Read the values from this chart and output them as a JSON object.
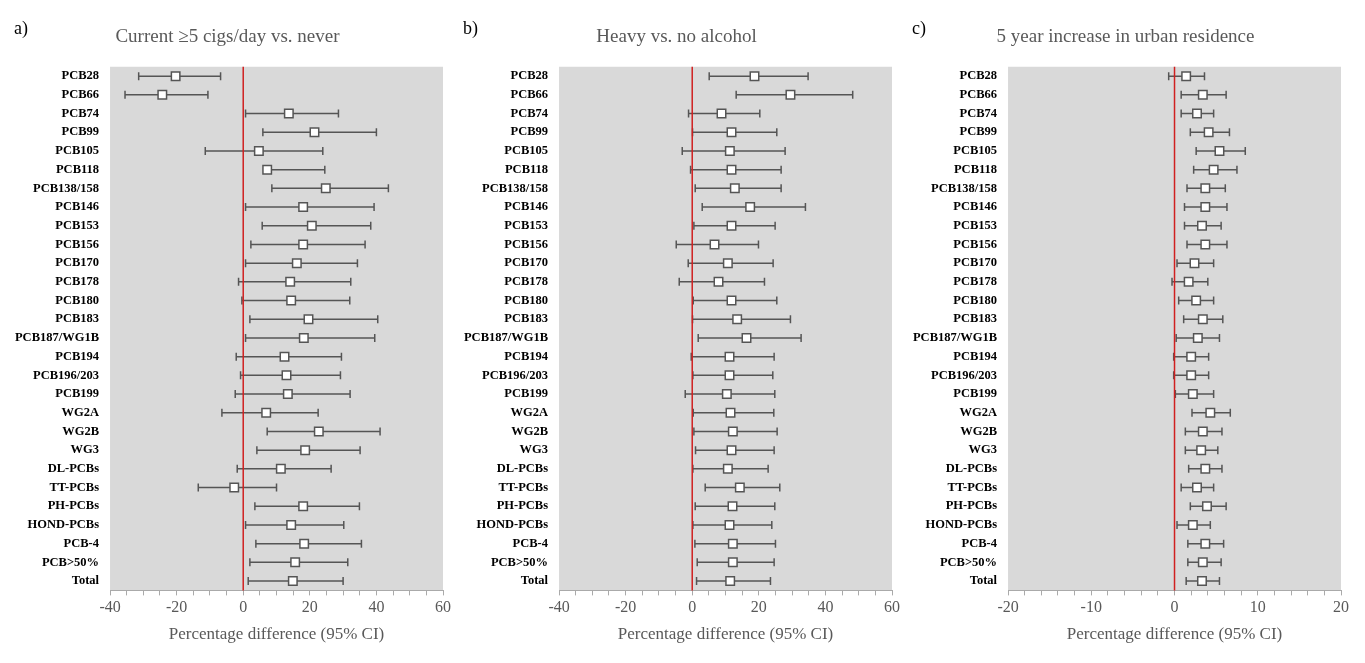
{
  "chart_data": [
    {
      "type": "scatter",
      "orientation": "horizontal",
      "title": "Current ≥5 cigs/day vs. never",
      "xlabel": "Percentage difference (95% CI)",
      "annotations": [
        "a)"
      ],
      "categories": [
        "PCB28",
        "PCB66",
        "PCB74",
        "PCB99",
        "PCB105",
        "PCB118",
        "PCB138/158",
        "PCB146",
        "PCB153",
        "PCB156",
        "PCB170",
        "PCB178",
        "PCB180",
        "PCB183",
        "PCB187/WG1B",
        "PCB194",
        "PCB196/203",
        "PCB199",
        "WG2A",
        "WG2B",
        "WG3",
        "DL-PCBs",
        "TT-PCBs",
        "PH-PCBs",
        "HOND-PCBs",
        "PCB-4",
        "PCB>50%",
        "Total"
      ],
      "values": [
        -20.3,
        -24.3,
        13.7,
        21.4,
        4.7,
        7.2,
        24.8,
        18.0,
        20.6,
        18.0,
        16.1,
        14.1,
        14.4,
        19.6,
        18.2,
        12.4,
        13.0,
        13.4,
        6.9,
        22.7,
        18.6,
        11.3,
        -2.7,
        18.0,
        14.4,
        18.3,
        15.6,
        14.9
      ],
      "errors": [
        [
          -31.4,
          -6.8
        ],
        [
          -35.5,
          -10.6
        ],
        [
          0.7,
          28.6
        ],
        [
          5.9,
          40.0
        ],
        [
          -11.4,
          23.9
        ],
        [
          6.4,
          24.5
        ],
        [
          8.6,
          43.6
        ],
        [
          0.7,
          39.3
        ],
        [
          5.7,
          38.3
        ],
        [
          2.3,
          36.6
        ],
        [
          0.7,
          34.3
        ],
        [
          -1.4,
          32.3
        ],
        [
          -0.4,
          32.0
        ],
        [
          2.0,
          40.4
        ],
        [
          0.7,
          39.5
        ],
        [
          -2.1,
          29.5
        ],
        [
          -0.8,
          29.2
        ],
        [
          -2.4,
          32.1
        ],
        [
          -6.4,
          22.5
        ],
        [
          7.2,
          41.1
        ],
        [
          4.1,
          35.1
        ],
        [
          -1.8,
          26.4
        ],
        [
          -13.5,
          10.0
        ],
        [
          3.5,
          34.9
        ],
        [
          0.7,
          30.2
        ],
        [
          3.8,
          35.5
        ],
        [
          2.0,
          31.4
        ],
        [
          1.5,
          30.0
        ]
      ],
      "color": "#555555",
      "marker": "square",
      "xlim": [
        -40,
        60
      ],
      "xticks": [
        -40,
        {
          "value": -35,
          "label": null
        },
        {
          "value": -30,
          "label": null
        },
        {
          "value": -25,
          "label": null
        },
        -20,
        {
          "value": -15,
          "label": null
        },
        {
          "value": -10,
          "label": null
        },
        {
          "value": -5,
          "label": null
        },
        0,
        {
          "value": 5,
          "label": null
        },
        {
          "value": 10,
          "label": null
        },
        {
          "value": 15,
          "label": null
        },
        20,
        {
          "value": 25,
          "label": null
        },
        {
          "value": 30,
          "label": null
        },
        {
          "value": 35,
          "label": null
        },
        40,
        {
          "value": 45,
          "label": null
        },
        {
          "value": 50,
          "label": null
        },
        {
          "value": 55,
          "label": null
        },
        60
      ],
      "ref_lines": [
        {
          "axis": "x",
          "value": 0,
          "color": "#d02020"
        }
      ],
      "grid": false,
      "legend": false
    },
    {
      "type": "scatter",
      "orientation": "horizontal",
      "title": "Heavy vs. no alcohol",
      "xlabel": "Percentage difference (95% CI)",
      "annotations": [
        "b)"
      ],
      "categories": [
        "PCB28",
        "PCB66",
        "PCB74",
        "PCB99",
        "PCB105",
        "PCB118",
        "PCB138/158",
        "PCB146",
        "PCB153",
        "PCB156",
        "PCB170",
        "PCB178",
        "PCB180",
        "PCB183",
        "PCB187/WG1B",
        "PCB194",
        "PCB196/203",
        "PCB199",
        "WG2A",
        "WG2B",
        "WG3",
        "DL-PCBs",
        "TT-PCBs",
        "PH-PCBs",
        "HOND-PCBs",
        "PCB-4",
        "PCB>50%",
        "Total"
      ],
      "values": [
        18.7,
        29.5,
        8.8,
        11.8,
        11.3,
        11.8,
        12.8,
        17.4,
        11.8,
        6.7,
        10.7,
        7.9,
        11.8,
        13.5,
        16.3,
        11.2,
        11.2,
        10.4,
        11.5,
        12.2,
        11.8,
        10.7,
        14.3,
        12.1,
        11.2,
        12.2,
        12.2,
        11.4
      ],
      "errors": [
        [
          5.1,
          34.8
        ],
        [
          13.2,
          48.2
        ],
        [
          -1.1,
          20.3
        ],
        [
          0.1,
          25.4
        ],
        [
          -3.0,
          27.9
        ],
        [
          -0.5,
          26.7
        ],
        [
          0.9,
          26.7
        ],
        [
          3.0,
          34.0
        ],
        [
          0.5,
          24.9
        ],
        [
          -4.8,
          19.9
        ],
        [
          -1.2,
          24.3
        ],
        [
          -3.9,
          21.7
        ],
        [
          0.3,
          25.4
        ],
        [
          0.1,
          29.5
        ],
        [
          1.8,
          32.7
        ],
        [
          -0.3,
          24.6
        ],
        [
          0.2,
          24.2
        ],
        [
          -2.1,
          24.8
        ],
        [
          0.3,
          24.5
        ],
        [
          0.5,
          25.5
        ],
        [
          1.0,
          24.6
        ],
        [
          0.2,
          22.8
        ],
        [
          3.9,
          26.3
        ],
        [
          0.9,
          24.8
        ],
        [
          0.2,
          23.9
        ],
        [
          0.8,
          25.0
        ],
        [
          1.5,
          24.6
        ],
        [
          1.3,
          23.5
        ]
      ],
      "color": "#555555",
      "marker": "square",
      "xlim": [
        -40,
        60
      ],
      "xticks": [
        -40,
        {
          "value": -35,
          "label": null
        },
        {
          "value": -30,
          "label": null
        },
        {
          "value": -25,
          "label": null
        },
        -20,
        {
          "value": -15,
          "label": null
        },
        {
          "value": -10,
          "label": null
        },
        {
          "value": -5,
          "label": null
        },
        0,
        {
          "value": 5,
          "label": null
        },
        {
          "value": 10,
          "label": null
        },
        {
          "value": 15,
          "label": null
        },
        20,
        {
          "value": 25,
          "label": null
        },
        {
          "value": 30,
          "label": null
        },
        {
          "value": 35,
          "label": null
        },
        40,
        {
          "value": 45,
          "label": null
        },
        {
          "value": 50,
          "label": null
        },
        {
          "value": 55,
          "label": null
        },
        60
      ],
      "ref_lines": [
        {
          "axis": "x",
          "value": 0,
          "color": "#d02020"
        }
      ],
      "grid": false,
      "legend": false
    },
    {
      "type": "scatter",
      "orientation": "horizontal",
      "title": "5 year increase in urban residence",
      "xlabel": "Percentage difference (95% CI)",
      "annotations": [
        "c)"
      ],
      "categories": [
        "PCB28",
        "PCB66",
        "PCB74",
        "PCB99",
        "PCB105",
        "PCB118",
        "PCB138/158",
        "PCB146",
        "PCB153",
        "PCB156",
        "PCB170",
        "PCB178",
        "PCB180",
        "PCB183",
        "PCB187/WG1B",
        "PCB194",
        "PCB196/203",
        "PCB199",
        "WG2A",
        "WG2B",
        "WG3",
        "DL-PCBs",
        "TT-PCBs",
        "PH-PCBs",
        "HOND-PCBs",
        "PCB-4",
        "PCB>50%",
        "Total"
      ],
      "values": [
        1.4,
        3.4,
        2.7,
        4.1,
        5.4,
        4.7,
        3.7,
        3.7,
        3.3,
        3.7,
        2.4,
        1.7,
        2.6,
        3.4,
        2.8,
        2.0,
        2.0,
        2.2,
        4.3,
        3.4,
        3.2,
        3.7,
        2.7,
        3.9,
        2.2,
        3.7,
        3.4,
        3.3
      ],
      "errors": [
        [
          -0.7,
          3.6
        ],
        [
          0.8,
          6.2
        ],
        [
          0.8,
          4.7
        ],
        [
          1.9,
          6.6
        ],
        [
          2.6,
          8.5
        ],
        [
          2.3,
          7.5
        ],
        [
          1.5,
          6.1
        ],
        [
          1.2,
          6.3
        ],
        [
          1.2,
          5.6
        ],
        [
          1.5,
          6.3
        ],
        [
          0.3,
          4.7
        ],
        [
          -0.3,
          4.0
        ],
        [
          0.5,
          4.7
        ],
        [
          1.1,
          5.8
        ],
        [
          0.2,
          5.4
        ],
        [
          -0.1,
          4.1
        ],
        [
          -0.1,
          4.1
        ],
        [
          0.1,
          4.7
        ],
        [
          2.1,
          6.7
        ],
        [
          1.3,
          5.7
        ],
        [
          1.3,
          5.2
        ],
        [
          1.7,
          5.7
        ],
        [
          0.8,
          4.7
        ],
        [
          1.9,
          6.2
        ],
        [
          0.3,
          4.3
        ],
        [
          1.6,
          5.9
        ],
        [
          1.6,
          5.6
        ],
        [
          1.4,
          5.4
        ]
      ],
      "color": "#555555",
      "marker": "square",
      "xlim": [
        -20,
        20
      ],
      "xticks": [
        -20,
        {
          "value": -18,
          "label": null
        },
        {
          "value": -16,
          "label": null
        },
        {
          "value": -14,
          "label": null
        },
        {
          "value": -12,
          "label": null
        },
        -10,
        {
          "value": -8,
          "label": null
        },
        {
          "value": -6,
          "label": null
        },
        {
          "value": -4,
          "label": null
        },
        {
          "value": -2,
          "label": null
        },
        0,
        {
          "value": 2,
          "label": null
        },
        {
          "value": 4,
          "label": null
        },
        {
          "value": 6,
          "label": null
        },
        {
          "value": 8,
          "label": null
        },
        10,
        {
          "value": 12,
          "label": null
        },
        {
          "value": 14,
          "label": null
        },
        {
          "value": 16,
          "label": null
        },
        {
          "value": 18,
          "label": null
        },
        20
      ],
      "ref_lines": [
        {
          "axis": "x",
          "value": 0,
          "color": "#d02020"
        }
      ],
      "grid": false,
      "legend": false
    }
  ]
}
